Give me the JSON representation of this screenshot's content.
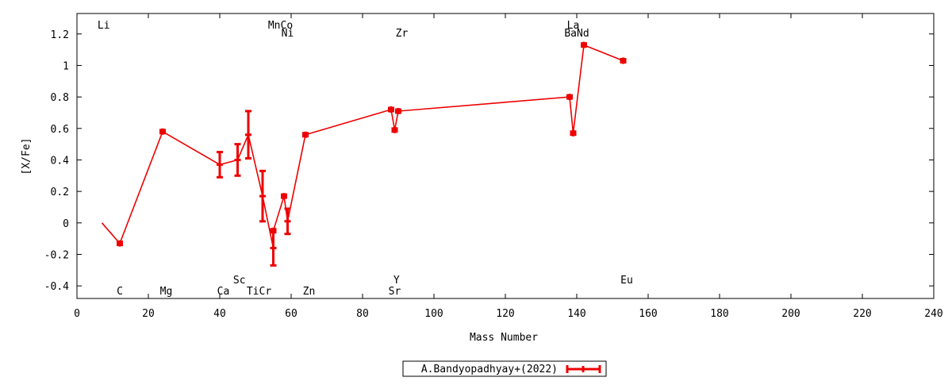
{
  "chart_data": {
    "type": "line",
    "xlabel": "Mass Number",
    "ylabel": "[X/Fe]",
    "xlim": [
      0,
      240
    ],
    "ylim": [
      -0.48,
      1.33
    ],
    "x_ticks": [
      "0",
      "20",
      "40",
      "60",
      "80",
      "100",
      "120",
      "140",
      "160",
      "180",
      "200",
      "220",
      "240"
    ],
    "y_ticks": [
      "-0.4",
      "-0.2",
      "0",
      "0.2",
      "0.4",
      "0.6",
      "0.8",
      "1",
      "1.2"
    ],
    "grid": false,
    "legend_position": "bottom-center",
    "colors": {
      "series": "#ee0000",
      "axis": "#000000"
    },
    "series": [
      {
        "name": "A.Bandyopadhyay+(2022)",
        "points": [
          {
            "x": 7,
            "y": 0.0,
            "err": 0,
            "marker": false
          },
          {
            "x": 12,
            "y": -0.13,
            "err": 0.01,
            "marker": true
          },
          {
            "x": 24,
            "y": 0.58,
            "err": 0.01,
            "marker": true
          },
          {
            "x": 40,
            "y": 0.37,
            "err": 0.08,
            "marker": true
          },
          {
            "x": 45,
            "y": 0.4,
            "err": 0.1,
            "marker": true
          },
          {
            "x": 48,
            "y": 0.56,
            "err": 0.15,
            "marker": true
          },
          {
            "x": 52,
            "y": 0.17,
            "err": 0.16,
            "marker": true
          },
          {
            "x": 55,
            "y": -0.16,
            "err": 0.11,
            "marker": true
          },
          {
            "x": 55,
            "y": -0.05,
            "err": 0.01,
            "marker": true
          },
          {
            "x": 58,
            "y": 0.17,
            "err": 0.01,
            "marker": true
          },
          {
            "x": 59,
            "y": 0.01,
            "err": 0.08,
            "marker": true
          },
          {
            "x": 64,
            "y": 0.56,
            "err": 0.01,
            "marker": true
          },
          {
            "x": 88,
            "y": 0.72,
            "err": 0.01,
            "marker": true
          },
          {
            "x": 89,
            "y": 0.59,
            "err": 0.01,
            "marker": true
          },
          {
            "x": 90,
            "y": 0.71,
            "err": 0.01,
            "marker": true
          },
          {
            "x": 138,
            "y": 0.8,
            "err": 0.01,
            "marker": true
          },
          {
            "x": 139,
            "y": 0.57,
            "err": 0.01,
            "marker": true
          },
          {
            "x": 142,
            "y": 1.13,
            "err": 0.01,
            "marker": true
          },
          {
            "x": 153,
            "y": 1.03,
            "err": 0.01,
            "marker": true
          }
        ]
      }
    ],
    "element_labels": [
      {
        "text": "Li",
        "x": 7.5,
        "y": 1.26
      },
      {
        "text": "MnCo",
        "x": 57,
        "y": 1.26
      },
      {
        "text": "Ni",
        "x": 59,
        "y": 1.21
      },
      {
        "text": "Zr",
        "x": 91,
        "y": 1.21
      },
      {
        "text": "La",
        "x": 139,
        "y": 1.26
      },
      {
        "text": "BaNd",
        "x": 140,
        "y": 1.21
      },
      {
        "text": "Sc",
        "x": 45.5,
        "y": -0.36
      },
      {
        "text": "Y",
        "x": 89.5,
        "y": -0.36
      },
      {
        "text": "Eu",
        "x": 154,
        "y": -0.36
      },
      {
        "text": "C",
        "x": 12,
        "y": -0.43
      },
      {
        "text": "Mg",
        "x": 25,
        "y": -0.43
      },
      {
        "text": "Ca",
        "x": 41,
        "y": -0.43
      },
      {
        "text": "TiCr",
        "x": 51,
        "y": -0.43
      },
      {
        "text": "Zn",
        "x": 65,
        "y": -0.43
      },
      {
        "text": "Sr",
        "x": 89,
        "y": -0.43
      }
    ]
  }
}
